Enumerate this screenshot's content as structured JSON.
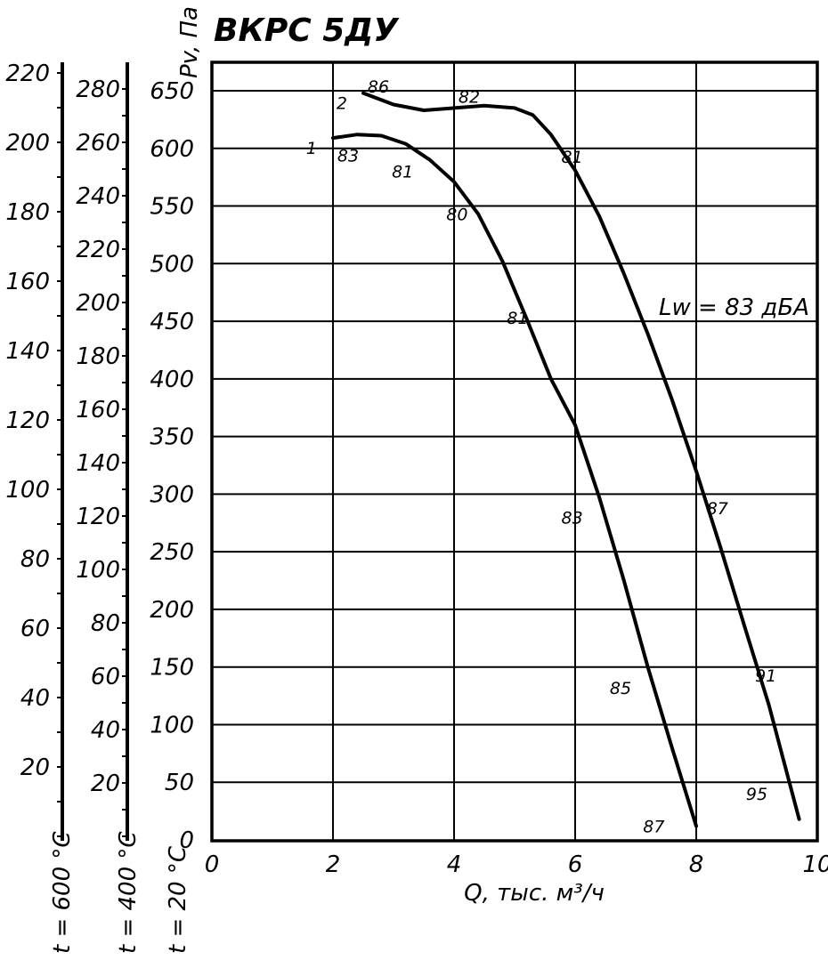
{
  "chart_data": {
    "type": "line",
    "title": "ВКРС 5ДУ",
    "xlabel": "Q, тыс. м³/ч",
    "ylabel": "Pv, Па",
    "xlim": [
      0,
      10
    ],
    "ylim": [
      0,
      650
    ],
    "grid": true,
    "x_ticks": [
      "0",
      "2",
      "4",
      "6",
      "8",
      "10"
    ],
    "y_ticks": [
      "0",
      "50",
      "100",
      "150",
      "200",
      "250",
      "300",
      "350",
      "400",
      "450",
      "500",
      "550",
      "600",
      "650"
    ],
    "annotation": "Lw = 83 дБА",
    "series": [
      {
        "name": "1",
        "points": [
          [
            2.0,
            609
          ],
          [
            2.4,
            612
          ],
          [
            2.8,
            611
          ],
          [
            3.2,
            604
          ],
          [
            3.6,
            590
          ],
          [
            4.0,
            571
          ],
          [
            4.4,
            543
          ],
          [
            4.8,
            502
          ],
          [
            5.2,
            452
          ],
          [
            5.6,
            400
          ],
          [
            6.0,
            360
          ],
          [
            6.4,
            297
          ],
          [
            6.8,
            226
          ],
          [
            7.2,
            150
          ],
          [
            7.6,
            80
          ],
          [
            8.0,
            12
          ]
        ],
        "noise_labels": [
          {
            "x": 2.25,
            "y": 594,
            "text": "83"
          },
          {
            "x": 3.15,
            "y": 580,
            "text": "81"
          },
          {
            "x": 4.05,
            "y": 543,
            "text": "80"
          },
          {
            "x": 5.05,
            "y": 453,
            "text": "81"
          },
          {
            "x": 5.95,
            "y": 280,
            "text": "83"
          },
          {
            "x": 6.75,
            "y": 132,
            "text": "85"
          },
          {
            "x": 7.3,
            "y": 12,
            "text": "87"
          }
        ]
      },
      {
        "name": "2",
        "points": [
          [
            2.5,
            648
          ],
          [
            3.0,
            638
          ],
          [
            3.5,
            633
          ],
          [
            4.0,
            635
          ],
          [
            4.5,
            637
          ],
          [
            5.0,
            635
          ],
          [
            5.3,
            629
          ],
          [
            5.6,
            612
          ],
          [
            6.0,
            581
          ],
          [
            6.4,
            541
          ],
          [
            6.8,
            492
          ],
          [
            7.2,
            439
          ],
          [
            7.6,
            382
          ],
          [
            8.0,
            320
          ],
          [
            8.4,
            254
          ],
          [
            8.8,
            185
          ],
          [
            9.2,
            117
          ],
          [
            9.7,
            18
          ]
        ],
        "noise_labels": [
          {
            "x": 2.75,
            "y": 654,
            "text": "86"
          },
          {
            "x": 4.25,
            "y": 645,
            "text": "82"
          },
          {
            "x": 5.95,
            "y": 593,
            "text": "81"
          },
          {
            "x": 8.35,
            "y": 288,
            "text": "87"
          },
          {
            "x": 9.15,
            "y": 143,
            "text": "91"
          },
          {
            "x": 9.0,
            "y": 40,
            "text": "95"
          }
        ]
      }
    ],
    "temperature_scales": [
      {
        "label": "t = 600 °C",
        "ticks": [
          "20",
          "40",
          "60",
          "80",
          "100",
          "120",
          "140",
          "160",
          "180",
          "200",
          "220"
        ]
      },
      {
        "label": "t = 400 °C",
        "ticks": [
          "20",
          "40",
          "60",
          "80",
          "100",
          "120",
          "140",
          "160",
          "180",
          "200",
          "220",
          "240",
          "260",
          "280"
        ]
      },
      {
        "label": "t = 20 °C"
      }
    ]
  }
}
